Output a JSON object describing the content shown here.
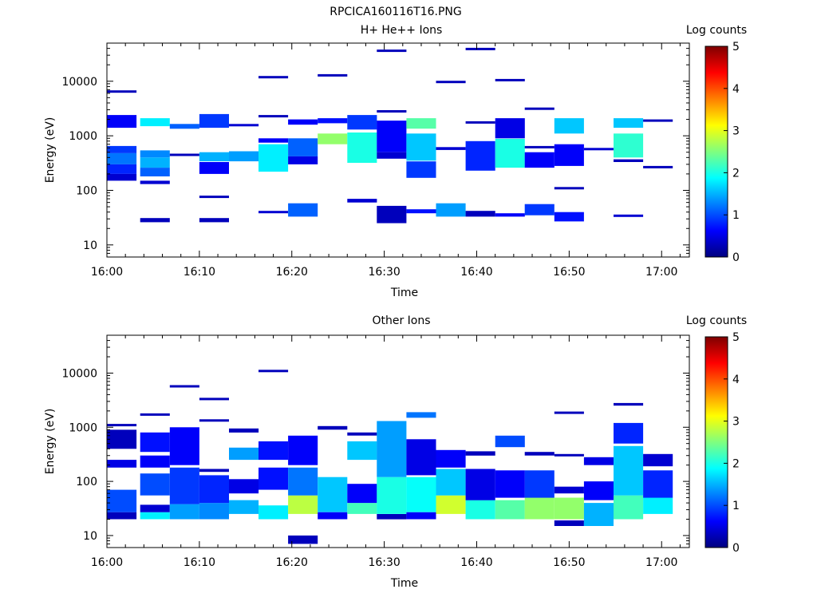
{
  "figure_title": "RPCICA160116T16.PNG",
  "chart_data": [
    {
      "type": "heatmap",
      "title": "H+ He++ Ions",
      "xlabel": "Time",
      "ylabel": "Energy (eV)",
      "x_ticks": [
        "16:00",
        "16:10",
        "16:20",
        "16:30",
        "16:40",
        "16:50",
        "17:00"
      ],
      "x_tick_minutes": [
        0,
        10,
        20,
        30,
        40,
        50,
        60
      ],
      "xlim_minutes": [
        0,
        63
      ],
      "ylim": [
        6,
        50000
      ],
      "y_scale": "log",
      "y_ticks": [
        "10",
        "100",
        "1000",
        "10000"
      ],
      "y_tick_values": [
        10,
        100,
        1000,
        10000
      ],
      "colorbar": {
        "label": "Log counts",
        "range": [
          0,
          5
        ],
        "ticks": [
          "0",
          "1",
          "2",
          "3",
          "4",
          "5"
        ]
      },
      "colormap": [
        "#00007f",
        "#0000ff",
        "#007fff",
        "#00ffff",
        "#7fff7f",
        "#ffff00",
        "#ff7f00",
        "#ff0000",
        "#7f0000"
      ],
      "cells": [
        [
          0,
          3.2,
          1400,
          2400,
          0.6
        ],
        [
          0,
          3.2,
          480,
          650,
          0.9
        ],
        [
          0,
          3.2,
          300,
          480,
          1.2
        ],
        [
          0,
          3.2,
          200,
          300,
          0.8
        ],
        [
          0,
          3.2,
          150,
          200,
          0.4
        ],
        [
          0,
          3.2,
          6300,
          6800,
          0.3
        ],
        [
          3.6,
          6.8,
          1500,
          2100,
          1.8
        ],
        [
          3.6,
          6.8,
          400,
          540,
          1.3
        ],
        [
          3.6,
          6.8,
          260,
          400,
          1.5
        ],
        [
          3.6,
          6.8,
          180,
          260,
          1.1
        ],
        [
          3.6,
          6.8,
          130,
          150,
          0.4
        ],
        [
          3.6,
          6.8,
          26,
          31,
          0.3
        ],
        [
          6.8,
          10,
          1350,
          1650,
          1.1
        ],
        [
          6.8,
          10,
          430,
          470,
          0.3
        ],
        [
          10,
          13.2,
          1400,
          2500,
          0.9
        ],
        [
          10,
          13.2,
          340,
          500,
          1.5
        ],
        [
          10,
          13.2,
          200,
          330,
          0.6
        ],
        [
          10,
          13.2,
          73,
          80,
          0.3
        ],
        [
          10,
          13.2,
          26,
          31,
          0.3
        ],
        [
          13.2,
          16.4,
          340,
          520,
          1.4
        ],
        [
          13.2,
          16.4,
          1550,
          1650,
          0.4
        ],
        [
          16.4,
          19.6,
          750,
          900,
          0.6
        ],
        [
          16.4,
          19.6,
          220,
          700,
          1.8
        ],
        [
          16.4,
          19.6,
          38,
          42,
          0.4
        ],
        [
          16.4,
          19.6,
          11500,
          12500,
          0.3
        ],
        [
          16.4,
          19.6,
          2200,
          2400,
          0.3
        ],
        [
          19.6,
          22.8,
          1600,
          2000,
          0.6
        ],
        [
          19.6,
          22.8,
          420,
          900,
          1.1
        ],
        [
          19.6,
          22.8,
          300,
          420,
          0.5
        ],
        [
          19.6,
          22.8,
          33,
          58,
          1.1
        ],
        [
          22.8,
          26,
          1700,
          2100,
          0.7
        ],
        [
          22.8,
          26,
          700,
          1100,
          2.6
        ],
        [
          22.8,
          26,
          12500,
          13500,
          0.3
        ],
        [
          26,
          29.2,
          1300,
          2400,
          0.9
        ],
        [
          26,
          29.2,
          320,
          1150,
          2.0
        ],
        [
          26,
          29.2,
          60,
          70,
          0.4
        ],
        [
          29.2,
          32.4,
          2700,
          2950,
          0.3
        ],
        [
          29.2,
          32.4,
          500,
          1900,
          0.6
        ],
        [
          29.2,
          32.4,
          380,
          500,
          0.4
        ],
        [
          29.2,
          32.4,
          25,
          52,
          0.3
        ],
        [
          29.2,
          32.4,
          35000,
          38000,
          0.3
        ],
        [
          32.4,
          35.6,
          1350,
          2100,
          2.3
        ],
        [
          32.4,
          35.6,
          350,
          1100,
          1.6
        ],
        [
          32.4,
          35.6,
          170,
          340,
          0.9
        ],
        [
          32.4,
          35.6,
          38,
          45,
          0.7
        ],
        [
          35.6,
          38.8,
          550,
          620,
          0.4
        ],
        [
          35.6,
          38.8,
          33,
          58,
          1.4
        ],
        [
          35.6,
          38.8,
          9500,
          10200,
          0.3
        ],
        [
          38.8,
          42,
          230,
          800,
          0.8
        ],
        [
          38.8,
          42,
          33,
          42,
          0.3
        ],
        [
          38.8,
          42,
          1700,
          1850,
          0.3
        ],
        [
          38.8,
          42,
          38000,
          41000,
          0.3
        ],
        [
          42,
          45.2,
          900,
          2100,
          0.5
        ],
        [
          42,
          45.2,
          260,
          880,
          2.0
        ],
        [
          42,
          45.2,
          33,
          38,
          0.6
        ],
        [
          42,
          45.2,
          10000,
          11000,
          0.3
        ],
        [
          45.2,
          48.4,
          600,
          650,
          0.3
        ],
        [
          45.2,
          48.4,
          260,
          500,
          0.6
        ],
        [
          45.2,
          48.4,
          35,
          56,
          0.9
        ],
        [
          45.2,
          48.4,
          3000,
          3300,
          0.3
        ],
        [
          48.4,
          51.6,
          1100,
          2100,
          1.6
        ],
        [
          48.4,
          51.6,
          280,
          700,
          0.6
        ],
        [
          48.4,
          51.6,
          27,
          40,
          0.7
        ],
        [
          48.4,
          51.6,
          105,
          115,
          0.3
        ],
        [
          51.6,
          54.8,
          550,
          600,
          0.4
        ],
        [
          54.8,
          58,
          1400,
          2100,
          1.6
        ],
        [
          54.8,
          58,
          400,
          1100,
          2.1
        ],
        [
          54.8,
          58,
          330,
          370,
          0.3
        ],
        [
          54.8,
          58,
          33,
          36,
          0.4
        ],
        [
          58,
          61.2,
          1850,
          2000,
          0.3
        ],
        [
          58,
          61.2,
          260,
          280,
          0.3
        ]
      ]
    },
    {
      "type": "heatmap",
      "title": "Other Ions",
      "xlabel": "Time",
      "ylabel": "Energy (eV)",
      "x_ticks": [
        "16:00",
        "16:10",
        "16:20",
        "16:30",
        "16:40",
        "16:50",
        "17:00"
      ],
      "x_tick_minutes": [
        0,
        10,
        20,
        30,
        40,
        50,
        60
      ],
      "xlim_minutes": [
        0,
        63
      ],
      "ylim": [
        6,
        50000
      ],
      "y_scale": "log",
      "y_ticks": [
        "10",
        "100",
        "1000",
        "10000"
      ],
      "y_tick_values": [
        10,
        100,
        1000,
        10000
      ],
      "colorbar": {
        "label": "Log counts",
        "range": [
          0,
          5
        ],
        "ticks": [
          "0",
          "1",
          "2",
          "3",
          "4",
          "5"
        ]
      },
      "colormap": [
        "#00007f",
        "#0000ff",
        "#007fff",
        "#00ffff",
        "#7fff7f",
        "#ffff00",
        "#ff7f00",
        "#ff0000",
        "#7f0000"
      ],
      "cells": [
        [
          0,
          3.2,
          20,
          27,
          0.3
        ],
        [
          0,
          3.2,
          27,
          70,
          1.0
        ],
        [
          0,
          3.2,
          180,
          250,
          0.5
        ],
        [
          0,
          3.2,
          400,
          900,
          0.3
        ],
        [
          0,
          3.2,
          1050,
          1150,
          0.3
        ],
        [
          3.6,
          6.8,
          20,
          27,
          1.8
        ],
        [
          3.6,
          6.8,
          27,
          37,
          0.4
        ],
        [
          3.6,
          6.8,
          55,
          140,
          1.0
        ],
        [
          3.6,
          6.8,
          180,
          300,
          0.6
        ],
        [
          3.6,
          6.8,
          350,
          800,
          0.7
        ],
        [
          3.6,
          6.8,
          1650,
          1800,
          0.3
        ],
        [
          6.8,
          10,
          20,
          38,
          1.4
        ],
        [
          6.8,
          10,
          38,
          180,
          0.9
        ],
        [
          6.8,
          10,
          200,
          1000,
          0.6
        ],
        [
          6.8,
          10,
          5500,
          6000,
          0.3
        ],
        [
          10,
          13.2,
          20,
          40,
          1.3
        ],
        [
          10,
          13.2,
          40,
          130,
          0.8
        ],
        [
          10,
          13.2,
          150,
          170,
          0.3
        ],
        [
          10,
          13.2,
          3300,
          3500,
          0.3
        ],
        [
          10,
          13.2,
          1300,
          1400,
          0.3
        ],
        [
          13.2,
          16.4,
          25,
          45,
          1.5
        ],
        [
          13.2,
          16.4,
          60,
          110,
          0.5
        ],
        [
          13.2,
          16.4,
          250,
          420,
          1.4
        ],
        [
          13.2,
          16.4,
          800,
          950,
          0.3
        ],
        [
          16.4,
          19.6,
          20,
          36,
          1.8
        ],
        [
          16.4,
          19.6,
          70,
          180,
          0.7
        ],
        [
          16.4,
          19.6,
          250,
          550,
          0.7
        ],
        [
          16.4,
          19.6,
          10800,
          11500,
          0.3
        ],
        [
          19.6,
          22.8,
          7,
          10,
          0.3
        ],
        [
          19.6,
          22.8,
          25,
          55,
          2.8
        ],
        [
          19.6,
          22.8,
          55,
          180,
          1.2
        ],
        [
          19.6,
          22.8,
          200,
          700,
          0.6
        ],
        [
          22.8,
          26,
          20,
          27,
          0.6
        ],
        [
          22.8,
          26,
          27,
          120,
          1.6
        ],
        [
          22.8,
          26,
          900,
          1050,
          0.3
        ],
        [
          26,
          29.2,
          25,
          40,
          2.2
        ],
        [
          26,
          29.2,
          40,
          90,
          0.6
        ],
        [
          26,
          29.2,
          250,
          550,
          1.6
        ],
        [
          26,
          29.2,
          700,
          800,
          0.3
        ],
        [
          29.2,
          32.4,
          20,
          25,
          0.3
        ],
        [
          29.2,
          32.4,
          25,
          120,
          2.0
        ],
        [
          29.2,
          32.4,
          120,
          1300,
          1.4
        ],
        [
          32.4,
          35.6,
          20,
          27,
          0.6
        ],
        [
          32.4,
          35.6,
          27,
          120,
          1.9
        ],
        [
          32.4,
          35.6,
          130,
          600,
          0.5
        ],
        [
          32.4,
          35.6,
          1500,
          1900,
          1.2
        ],
        [
          35.6,
          38.8,
          25,
          55,
          2.9
        ],
        [
          35.6,
          38.8,
          55,
          170,
          1.6
        ],
        [
          35.6,
          38.8,
          180,
          380,
          0.6
        ],
        [
          38.8,
          42,
          20,
          45,
          2.0
        ],
        [
          38.8,
          42,
          45,
          170,
          0.5
        ],
        [
          38.8,
          42,
          300,
          360,
          0.3
        ],
        [
          42,
          45.2,
          20,
          45,
          2.3
        ],
        [
          42,
          45.2,
          50,
          160,
          0.6
        ],
        [
          42,
          45.2,
          430,
          700,
          1.0
        ],
        [
          45.2,
          48.4,
          20,
          50,
          2.6
        ],
        [
          45.2,
          48.4,
          50,
          160,
          0.9
        ],
        [
          45.2,
          48.4,
          300,
          350,
          0.3
        ],
        [
          48.4,
          51.6,
          15,
          19,
          0.3
        ],
        [
          48.4,
          51.6,
          20,
          50,
          2.6
        ],
        [
          48.4,
          51.6,
          60,
          80,
          0.4
        ],
        [
          48.4,
          51.6,
          1850,
          1950,
          0.3
        ],
        [
          48.4,
          51.6,
          300,
          320,
          0.3
        ],
        [
          51.6,
          54.8,
          15,
          40,
          1.5
        ],
        [
          51.6,
          54.8,
          45,
          100,
          0.6
        ],
        [
          51.6,
          54.8,
          200,
          280,
          0.5
        ],
        [
          54.8,
          58,
          20,
          55,
          2.2
        ],
        [
          54.8,
          58,
          55,
          450,
          1.6
        ],
        [
          54.8,
          58,
          500,
          1200,
          0.8
        ],
        [
          54.8,
          58,
          2500,
          2800,
          0.3
        ],
        [
          58,
          61.2,
          25,
          50,
          1.8
        ],
        [
          58,
          61.2,
          50,
          160,
          0.8
        ],
        [
          58,
          61.2,
          190,
          320,
          0.4
        ]
      ]
    }
  ]
}
